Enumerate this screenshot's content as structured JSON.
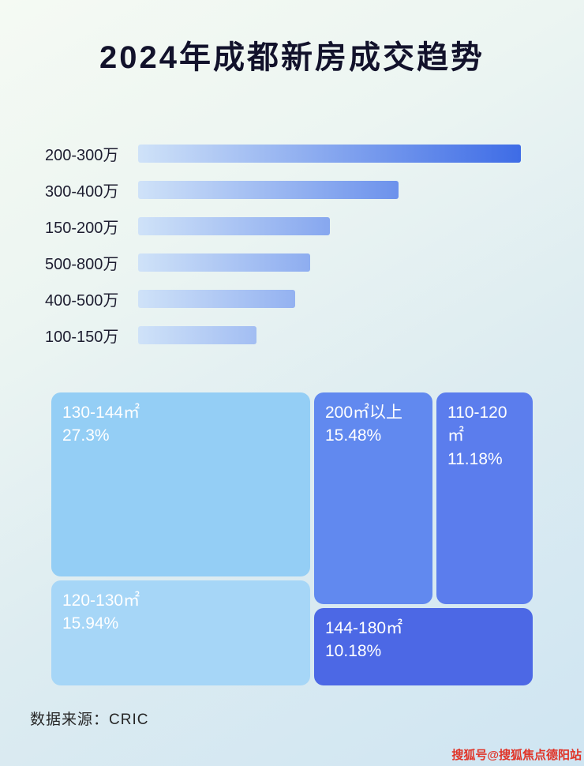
{
  "page": {
    "title": "2024年成都新房成交趋势",
    "source": "数据来源：CRIC",
    "watermark": "搜狐号@搜狐焦点德阳站"
  },
  "chart_data": [
    {
      "type": "bar",
      "orientation": "horizontal",
      "title": "2024年成都新房成交趋势",
      "categories": [
        "200-300万",
        "300-400万",
        "150-200万",
        "500-800万",
        "400-500万",
        "100-150万"
      ],
      "values": [
        100,
        68,
        50,
        45,
        41,
        31
      ],
      "value_note": "relative bar lengths as % of longest bar; no numeric axis shown in image",
      "bar_gradient": [
        "#cfe2f8",
        "#3e6ce6"
      ],
      "legend": "none",
      "grid": false
    },
    {
      "type": "treemap",
      "items": [
        {
          "label": "130-144㎡",
          "value": "27.3%",
          "color": "#94cef5"
        },
        {
          "label": "200㎡以上",
          "value": "15.48%",
          "color": "#6189ef"
        },
        {
          "label": "110-120㎡",
          "value": "11.18%",
          "color": "#5b7ded"
        },
        {
          "label": "120-130㎡",
          "value": "15.94%",
          "color": "#a6d6f7"
        },
        {
          "label": "144-180㎡",
          "value": "10.18%",
          "color": "#4c68e5"
        }
      ]
    }
  ]
}
